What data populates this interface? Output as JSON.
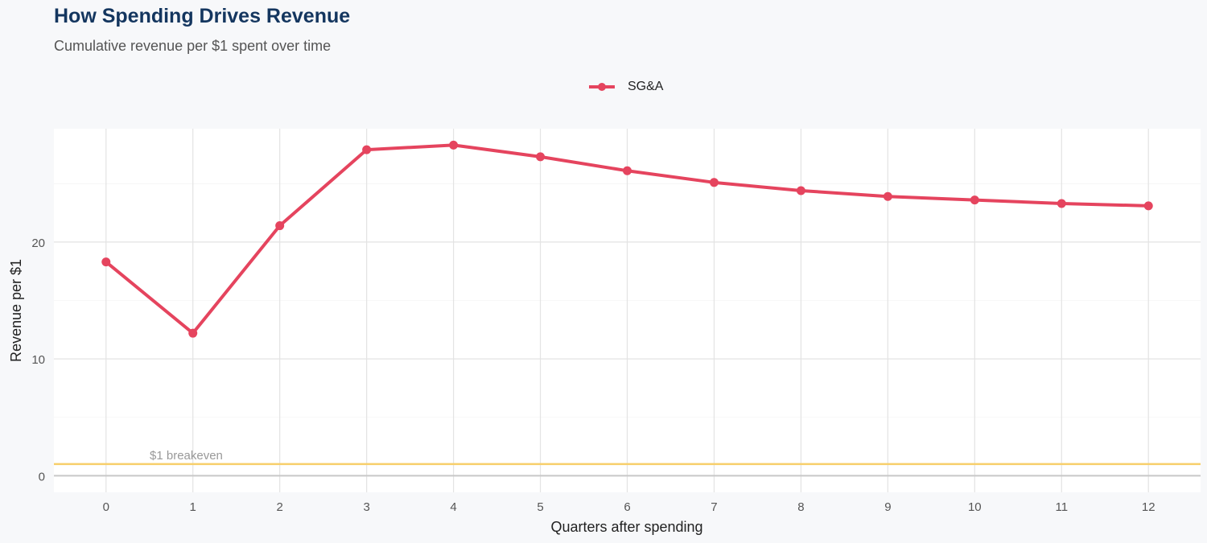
{
  "chart_data": {
    "type": "line",
    "title": "How Spending Drives Revenue",
    "subtitle": "Cumulative revenue per $1 spent over time",
    "xlabel": "Quarters after spending",
    "ylabel": "Revenue per $1",
    "x": [
      0,
      1,
      2,
      3,
      4,
      5,
      6,
      7,
      8,
      9,
      10,
      11,
      12
    ],
    "series": [
      {
        "name": "SG&A",
        "color": "#e5445e",
        "values": [
          18.3,
          12.2,
          21.4,
          27.9,
          28.3,
          27.3,
          26.1,
          25.1,
          24.4,
          23.9,
          23.6,
          23.3,
          23.1
        ]
      }
    ],
    "xticks": [
      "0",
      "1",
      "2",
      "3",
      "4",
      "5",
      "6",
      "7",
      "8",
      "9",
      "10",
      "11",
      "12"
    ],
    "yticks": [
      "0",
      "10",
      "20"
    ],
    "xlim": [
      -0.6,
      12.6
    ],
    "ylim": [
      -1.42,
      29.7
    ],
    "reference_line": {
      "y": 1,
      "label": "$1 breakeven",
      "color": "#f7cf6b"
    },
    "grid": true,
    "legend_position": "top"
  }
}
